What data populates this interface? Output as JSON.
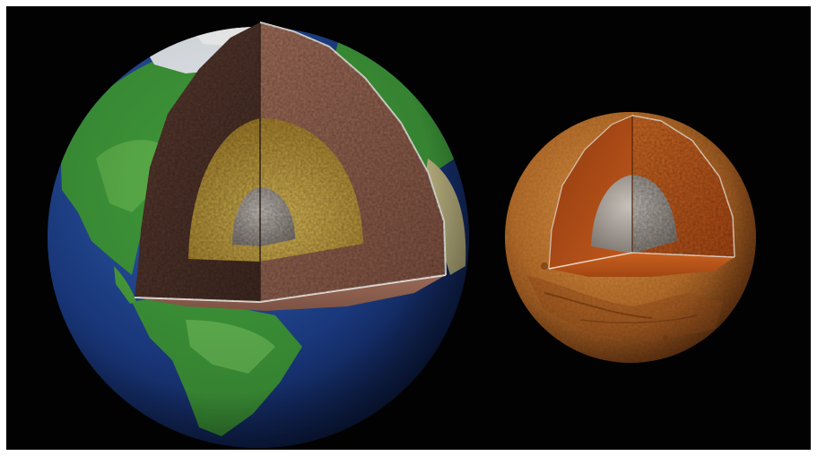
{
  "image": {
    "subject": "earth-and-mars-interior-cutaways",
    "background_color": "#020202",
    "frame_color": "#ffffff"
  },
  "earth": {
    "ocean_color": "#1a3f8f",
    "land_color": "#3f9a3a",
    "ice_color": "#e9eef2",
    "crust_mantle_color": "#8a5a4a",
    "outer_core_color": "#c9a640",
    "inner_core_color": "#a9a39c"
  },
  "mars": {
    "surface_color": "#c8782e",
    "mantle_color": "#b4521c",
    "inner_core_color": "#a7a19a"
  }
}
